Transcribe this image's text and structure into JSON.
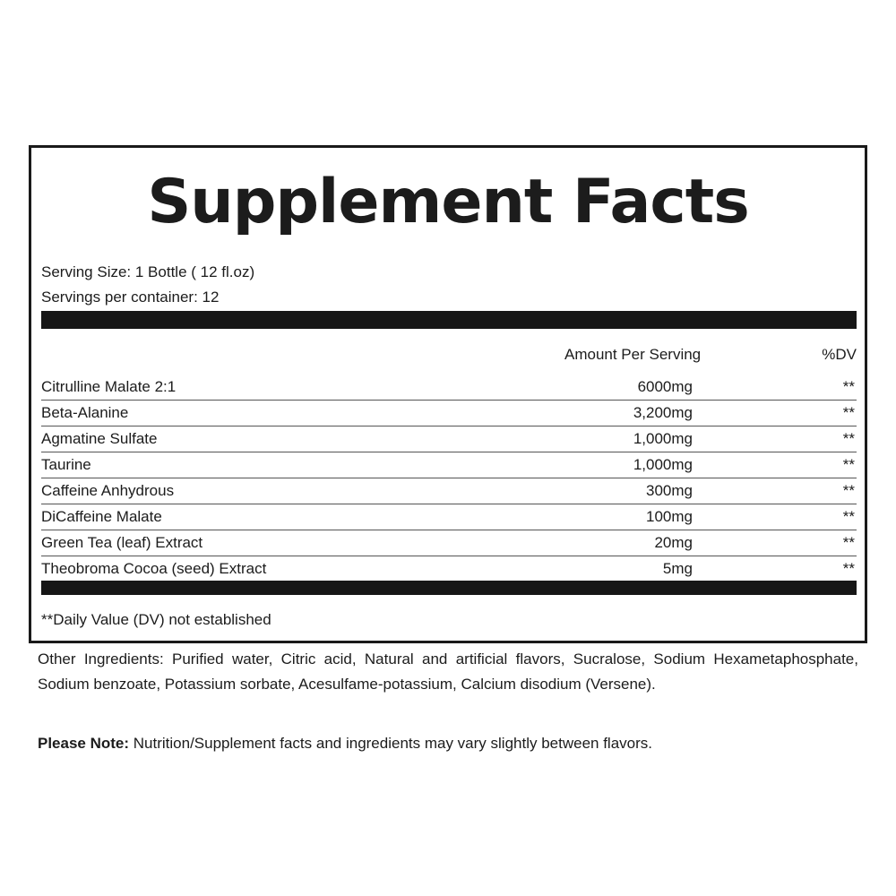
{
  "title": "Supplement Facts",
  "serving_size": "Serving Size: 1 Bottle ( 12 fl.oz)",
  "servings_per_container": "Servings per container: 12",
  "header": {
    "amount": "Amount Per Serving",
    "dv": "%DV"
  },
  "rows": [
    {
      "name": "Citrulline Malate 2:1",
      "amount": "6000mg",
      "dv": "**"
    },
    {
      "name": "Beta-Alanine",
      "amount": "3,200mg",
      "dv": "**"
    },
    {
      "name": "Agmatine Sulfate",
      "amount": "1,000mg",
      "dv": "**"
    },
    {
      "name": "Taurine",
      "amount": "1,000mg",
      "dv": "**"
    },
    {
      "name": "Caffeine Anhydrous",
      "amount": "300mg",
      "dv": "**"
    },
    {
      "name": "DiCaffeine Malate",
      "amount": "100mg",
      "dv": "**"
    },
    {
      "name": "Green Tea (leaf) Extract",
      "amount": "20mg",
      "dv": "**"
    },
    {
      "name": "Theobroma Cocoa (seed) Extract",
      "amount": "5mg",
      "dv": "**"
    }
  ],
  "footnote": "**Daily Value (DV) not established",
  "other_ingredients": "Other Ingredients: Purified water, Citric acid, Natural and artificial flavors, Sucralose, Sodium Hexametaphosphate, Sodium benzoate, Potassium sorbate, Acesulfame-potassium, Calcium disodium (Versene).",
  "note": {
    "label": "Please Note:",
    "text": " Nutrition/Supplement facts and ingredients may vary slightly between flavors."
  }
}
